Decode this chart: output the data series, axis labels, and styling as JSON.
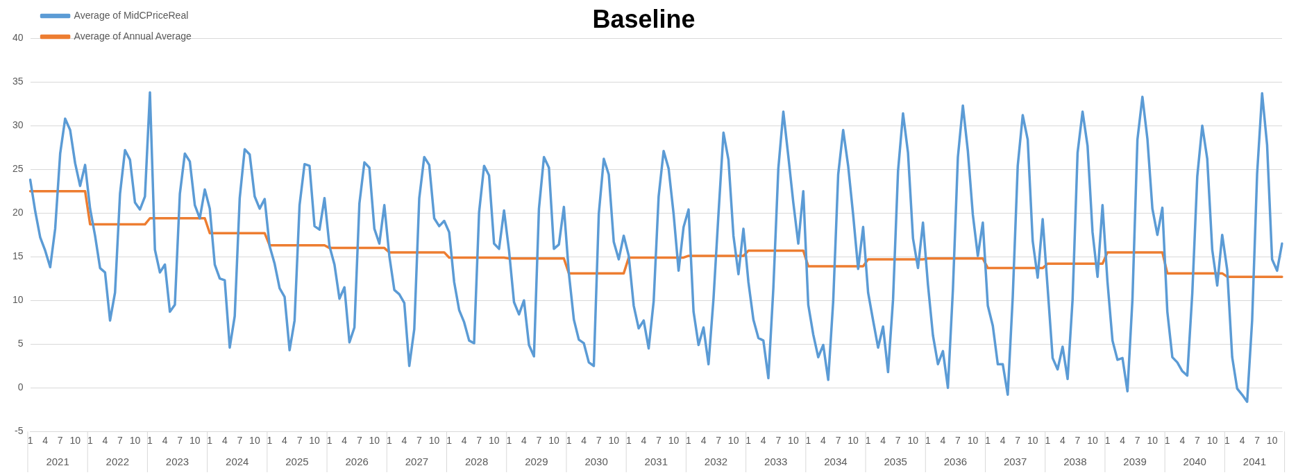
{
  "chart_data": {
    "type": "line",
    "title": "Baseline",
    "categories": [
      "1",
      null,
      null,
      "4",
      null,
      null,
      "7",
      null,
      null,
      "10",
      null,
      null,
      "1",
      null,
      null,
      "4",
      null,
      null,
      "7",
      null,
      null,
      "10",
      null,
      null,
      "1",
      null,
      null,
      "4",
      null,
      null,
      "7",
      null,
      null,
      "10",
      null,
      null,
      "1",
      null,
      null,
      "4",
      null,
      null,
      "7",
      null,
      null,
      "10",
      null,
      null,
      "1",
      null,
      null,
      "4",
      null,
      null,
      "7",
      null,
      null,
      "10",
      null,
      null,
      "1",
      null,
      null,
      "4",
      null,
      null,
      "7",
      null,
      null,
      "10",
      null,
      null,
      "1",
      null,
      null,
      "4",
      null,
      null,
      "7",
      null,
      null,
      "10",
      null,
      null,
      "1",
      null,
      null,
      "4",
      null,
      null,
      "7",
      null,
      null,
      "10",
      null,
      null,
      "1",
      null,
      null,
      "4",
      null,
      null,
      "7",
      null,
      null,
      "10",
      null,
      null,
      "1",
      null,
      null,
      "4",
      null,
      null,
      "7",
      null,
      null,
      "10",
      null,
      null,
      "1",
      null,
      null,
      "4",
      null,
      null,
      "7",
      null,
      null,
      "10",
      null,
      null,
      "1",
      null,
      null,
      "4",
      null,
      null,
      "7",
      null,
      null,
      "10",
      null,
      null,
      "1",
      null,
      null,
      "4",
      null,
      null,
      "7",
      null,
      null,
      "10",
      null,
      null,
      "1",
      null,
      null,
      "4",
      null,
      null,
      "7",
      null,
      null,
      "10",
      null,
      null,
      "1",
      null,
      null,
      "4",
      null,
      null,
      "7",
      null,
      null,
      "10",
      null,
      null,
      "1",
      null,
      null,
      "4",
      null,
      null,
      "7",
      null,
      null,
      "10",
      null,
      null,
      "1",
      null,
      null,
      "4",
      null,
      null,
      "7",
      null,
      null,
      "10",
      null,
      null,
      "1",
      null,
      null,
      "4",
      null,
      null,
      "7",
      null,
      null,
      "10",
      null,
      null,
      "1",
      null,
      null,
      "4",
      null,
      null,
      "7",
      null,
      null,
      "10",
      null,
      null,
      "1",
      null,
      null,
      "4",
      null,
      null,
      "7",
      null,
      null,
      "10",
      null,
      null,
      "1",
      null,
      null,
      "4",
      null,
      null,
      "7",
      null,
      null,
      "10",
      null,
      null
    ],
    "annotations": [
      "2021",
      "2022",
      "2023",
      "2024",
      "2025",
      "2026",
      "2027",
      "2028",
      "2029",
      "2030",
      "2031",
      "2032",
      "2033",
      "2034",
      "2035",
      "2036",
      "2037",
      "2038",
      "2039",
      "2040",
      "2041"
    ],
    "series": [
      {
        "name": "Average of MidCPriceReal",
        "color": "#5b9bd5",
        "values": [
          23.8,
          20.2,
          17.2,
          15.7,
          13.8,
          18.2,
          26.8,
          30.8,
          29.5,
          25.7,
          23.1,
          25.5,
          20.5,
          17.4,
          13.7,
          13.2,
          7.7,
          10.9,
          22.2,
          27.2,
          26.1,
          21.2,
          20.4,
          21.9,
          33.8,
          15.8,
          13.2,
          14.1,
          8.7,
          9.5,
          22.2,
          26.8,
          25.9,
          20.9,
          19.4,
          22.7,
          20.5,
          14.1,
          12.5,
          12.3,
          4.6,
          8.2,
          21.7,
          27.3,
          26.7,
          21.9,
          20.5,
          21.6,
          16.2,
          14.2,
          11.4,
          10.4,
          4.3,
          7.7,
          20.9,
          25.6,
          25.4,
          18.5,
          18.1,
          21.7,
          16.2,
          14.1,
          10.2,
          11.5,
          5.2,
          6.9,
          21.1,
          25.8,
          25.2,
          18.2,
          16.5,
          20.9,
          15.1,
          11.2,
          10.7,
          9.7,
          2.5,
          6.7,
          21.7,
          26.4,
          25.5,
          19.4,
          18.5,
          19.1,
          17.8,
          12.1,
          8.9,
          7.5,
          5.4,
          5.1,
          20.1,
          25.4,
          24.3,
          16.5,
          15.9,
          20.3,
          15.7,
          9.8,
          8.4,
          10.0,
          4.9,
          3.6,
          20.5,
          26.4,
          25.2,
          15.9,
          16.4,
          20.7,
          13.1,
          7.8,
          5.5,
          5.1,
          2.9,
          2.5,
          19.9,
          26.2,
          24.4,
          16.7,
          14.7,
          17.4,
          15.1,
          9.4,
          6.8,
          7.7,
          4.5,
          9.9,
          21.9,
          27.1,
          25.1,
          19.9,
          13.4,
          18.4,
          20.4,
          8.7,
          4.9,
          6.9,
          2.7,
          10.2,
          19.9,
          29.2,
          26.1,
          17.4,
          13.0,
          18.2,
          12.1,
          7.8,
          5.7,
          5.4,
          1.1,
          11.4,
          25.1,
          31.6,
          26.5,
          21.2,
          16.5,
          22.5,
          9.5,
          6.1,
          3.5,
          4.9,
          0.9,
          9.9,
          24.4,
          29.5,
          25.4,
          19.8,
          13.6,
          18.4,
          10.9,
          7.7,
          4.6,
          7.0,
          1.8,
          10.1,
          24.8,
          31.4,
          26.9,
          17.1,
          13.7,
          18.9,
          11.8,
          6.0,
          2.7,
          4.2,
          0.0,
          11.2,
          26.4,
          32.3,
          27.1,
          19.8,
          15.1,
          18.9,
          9.4,
          7.1,
          2.7,
          2.7,
          -0.8,
          10.4,
          25.4,
          31.2,
          28.4,
          16.8,
          12.6,
          19.3,
          11.4,
          3.4,
          2.1,
          4.7,
          1.0,
          10.1,
          26.9,
          31.6,
          27.7,
          17.8,
          12.7,
          20.9,
          12.1,
          5.4,
          3.2,
          3.4,
          -0.4,
          10.1,
          28.4,
          33.3,
          28.5,
          20.5,
          17.5,
          20.6,
          8.7,
          3.5,
          2.9,
          1.9,
          1.4,
          10.8,
          24.2,
          30.0,
          26.2,
          15.8,
          11.7,
          17.5,
          13.5,
          3.5,
          -0.1,
          -0.8,
          -1.6,
          7.7,
          24.5,
          33.7,
          27.8,
          14.7,
          13.4,
          16.5
        ]
      },
      {
        "name": "Average of Annual Average",
        "color": "#ed7d31",
        "values": [
          22.5,
          22.5,
          22.5,
          22.5,
          22.5,
          22.5,
          22.5,
          22.5,
          22.5,
          22.5,
          22.5,
          22.5,
          18.7,
          18.7,
          18.7,
          18.7,
          18.7,
          18.7,
          18.7,
          18.7,
          18.7,
          18.7,
          18.7,
          18.7,
          19.4,
          19.4,
          19.4,
          19.4,
          19.4,
          19.4,
          19.4,
          19.4,
          19.4,
          19.4,
          19.4,
          19.4,
          17.7,
          17.7,
          17.7,
          17.7,
          17.7,
          17.7,
          17.7,
          17.7,
          17.7,
          17.7,
          17.7,
          17.7,
          16.3,
          16.3,
          16.3,
          16.3,
          16.3,
          16.3,
          16.3,
          16.3,
          16.3,
          16.3,
          16.3,
          16.3,
          16.0,
          16.0,
          16.0,
          16.0,
          16.0,
          16.0,
          16.0,
          16.0,
          16.0,
          16.0,
          16.0,
          16.0,
          15.5,
          15.5,
          15.5,
          15.5,
          15.5,
          15.5,
          15.5,
          15.5,
          15.5,
          15.5,
          15.5,
          15.5,
          14.9,
          14.9,
          14.9,
          14.9,
          14.9,
          14.9,
          14.9,
          14.9,
          14.9,
          14.9,
          14.9,
          14.9,
          14.8,
          14.8,
          14.8,
          14.8,
          14.8,
          14.8,
          14.8,
          14.8,
          14.8,
          14.8,
          14.8,
          14.8,
          13.1,
          13.1,
          13.1,
          13.1,
          13.1,
          13.1,
          13.1,
          13.1,
          13.1,
          13.1,
          13.1,
          13.1,
          14.9,
          14.9,
          14.9,
          14.9,
          14.9,
          14.9,
          14.9,
          14.9,
          14.9,
          14.9,
          14.9,
          14.9,
          15.1,
          15.1,
          15.1,
          15.1,
          15.1,
          15.1,
          15.1,
          15.1,
          15.1,
          15.1,
          15.1,
          15.1,
          15.7,
          15.7,
          15.7,
          15.7,
          15.7,
          15.7,
          15.7,
          15.7,
          15.7,
          15.7,
          15.7,
          15.7,
          13.9,
          13.9,
          13.9,
          13.9,
          13.9,
          13.9,
          13.9,
          13.9,
          13.9,
          13.9,
          13.9,
          13.9,
          14.7,
          14.7,
          14.7,
          14.7,
          14.7,
          14.7,
          14.7,
          14.7,
          14.7,
          14.7,
          14.7,
          14.7,
          14.8,
          14.8,
          14.8,
          14.8,
          14.8,
          14.8,
          14.8,
          14.8,
          14.8,
          14.8,
          14.8,
          14.8,
          13.7,
          13.7,
          13.7,
          13.7,
          13.7,
          13.7,
          13.7,
          13.7,
          13.7,
          13.7,
          13.7,
          13.7,
          14.2,
          14.2,
          14.2,
          14.2,
          14.2,
          14.2,
          14.2,
          14.2,
          14.2,
          14.2,
          14.2,
          14.2,
          15.5,
          15.5,
          15.5,
          15.5,
          15.5,
          15.5,
          15.5,
          15.5,
          15.5,
          15.5,
          15.5,
          15.5,
          13.1,
          13.1,
          13.1,
          13.1,
          13.1,
          13.1,
          13.1,
          13.1,
          13.1,
          13.1,
          13.1,
          13.1,
          12.7,
          12.7,
          12.7,
          12.7,
          12.7,
          12.7,
          12.7,
          12.7,
          12.7,
          12.7,
          12.7,
          12.7
        ]
      }
    ],
    "ylim": [
      -5,
      40
    ],
    "yticks": [
      -5,
      0,
      5,
      10,
      15,
      20,
      25,
      30,
      35,
      40
    ],
    "grid": "y",
    "legend": "top left",
    "marker": "none",
    "line_style": "solid"
  }
}
